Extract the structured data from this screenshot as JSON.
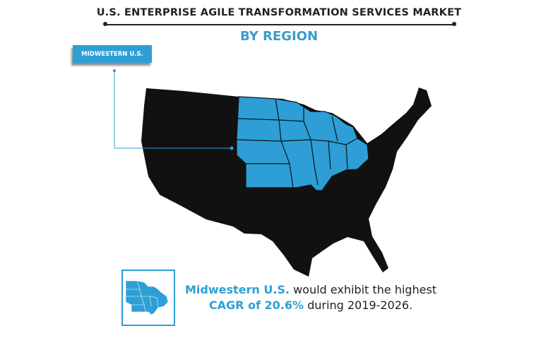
{
  "header": {
    "title": "U.S. ENTERPRISE AGILE TRANSFORMATION SERVICES MARKET",
    "subtitle": "BY REGION"
  },
  "map": {
    "highlight_label": "MIDWESTERN U.S.",
    "highlight_color": "#2d9fd6",
    "base_color": "#111111"
  },
  "callout": {
    "region": "Midwestern U.S.",
    "text_1": " would exhibit the highest",
    "cagr": "CAGR of 20.6%",
    "text_2": " during 2019-2026.",
    "icon": "midwest-map-icon"
  }
}
